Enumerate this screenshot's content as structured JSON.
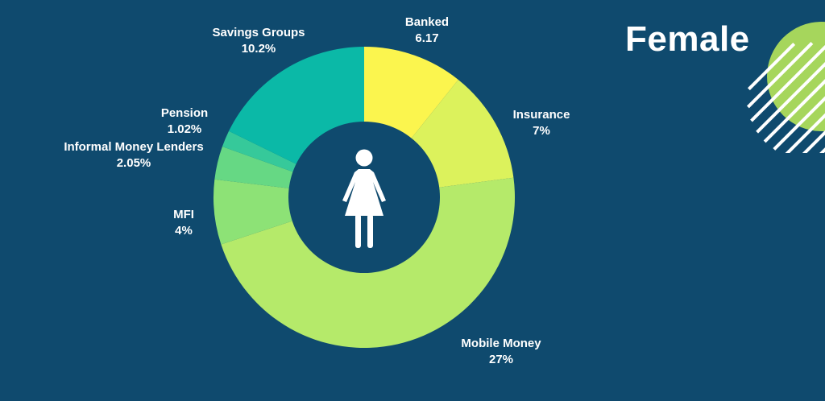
{
  "chart_data": {
    "type": "pie",
    "title": "Female",
    "categories": [
      "Banked",
      "Insurance",
      "Mobile Money",
      "MFI",
      "Informal Money Lenders",
      "Pension",
      "Savings Groups"
    ],
    "values": [
      6.17,
      7,
      27,
      4,
      2.05,
      1.02,
      10.2
    ],
    "value_labels": [
      "6.17",
      "7%",
      "27%",
      "4%",
      "2.05%",
      "1.02%",
      "10.2%"
    ],
    "colors": [
      "#fbf54e",
      "#dcf25c",
      "#b5ea6a",
      "#8de276",
      "#66d884",
      "#36c99a",
      "#0bb9a7"
    ],
    "legend": "none"
  },
  "decor": {
    "accent": "#a6d65c",
    "icon": "female-person-icon"
  }
}
